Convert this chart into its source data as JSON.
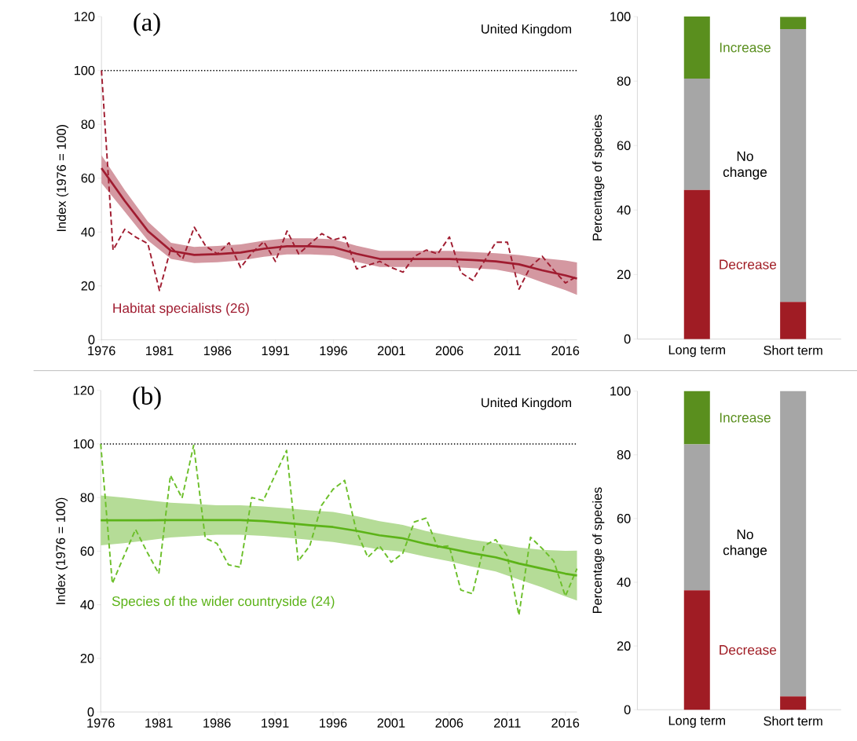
{
  "chart_data": [
    {
      "type": "line",
      "title": "(a)",
      "annotations": [
        "United Kingdom"
      ],
      "ylabel": "Index (1976 = 100)",
      "xlim": [
        1976,
        2017
      ],
      "xticks": [
        1976,
        1981,
        1986,
        1991,
        1996,
        2001,
        2006,
        2011,
        2016
      ],
      "ylim": [
        0,
        120
      ],
      "yticks": [
        0,
        20,
        40,
        60,
        80,
        100,
        120
      ],
      "ref_lines": [
        {
          "axis": "y",
          "value": 100,
          "color": "#000000",
          "line_style": "dotted"
        }
      ],
      "series": [
        {
          "color": "#a01c30",
          "line_style": "dashed",
          "x": [
            1976,
            1977,
            1978,
            1979,
            1980,
            1981,
            1982,
            1983,
            1984,
            1985,
            1986,
            1987,
            1988,
            1989,
            1990,
            1991,
            1992,
            1993,
            1994,
            1995,
            1996,
            1997,
            1998,
            1999,
            2000,
            2001,
            2002,
            2003,
            2004,
            2005,
            2006,
            2007,
            2008,
            2009,
            2010,
            2011,
            2012,
            2013,
            2014,
            2015,
            2016,
            2017
          ],
          "values": [
            100,
            33.3,
            41,
            38,
            35.7,
            18.3,
            34.3,
            30,
            41.8,
            34.7,
            31.9,
            36,
            26.8,
            32.4,
            36.4,
            29.1,
            40.4,
            31.9,
            35.7,
            39.4,
            37.1,
            38.2,
            26.3,
            27.7,
            29.1,
            26.8,
            25.1,
            31,
            33.3,
            31.9,
            38.2,
            24.9,
            22.1,
            29.1,
            36.2,
            36.2,
            18.8,
            27.2,
            31,
            25.8,
            21.1,
            23.5
          ]
        },
        {
          "name": "Habitat specialists (26)",
          "color": "#a01c30",
          "line_style": "solid",
          "x": [
            1976,
            1978,
            1980,
            1982,
            1984,
            1986,
            1988,
            1990,
            1992,
            1994,
            1996,
            1998,
            2000,
            2002,
            2004,
            2006,
            2008,
            2010,
            2012,
            2014,
            2016,
            2017
          ],
          "values": [
            63.7,
            51.6,
            40.4,
            33,
            31.5,
            31.8,
            32.4,
            33.8,
            34.7,
            34.7,
            34.3,
            31.9,
            30,
            30,
            30,
            30,
            29.6,
            29.1,
            28,
            25.8,
            23.9,
            22.7
          ],
          "lower": [
            58.2,
            47.6,
            36.9,
            30,
            28.5,
            28.8,
            29.4,
            30.8,
            31.7,
            31.7,
            31.3,
            28.9,
            27,
            27,
            27,
            27,
            26.6,
            26.1,
            24.5,
            21.3,
            18.4,
            16.7
          ],
          "upper": [
            68.5,
            55.6,
            43.9,
            36,
            34.5,
            34.8,
            35.4,
            36.8,
            37.7,
            37.7,
            37.3,
            34.9,
            33,
            33,
            33,
            33,
            32.6,
            32.1,
            31.5,
            30.3,
            29.4,
            28.7
          ]
        }
      ]
    },
    {
      "type": "bar",
      "stacked": true,
      "ylabel": "Percentage of species",
      "categories": [
        "Long term",
        "Short term"
      ],
      "ylim": [
        0,
        100
      ],
      "yticks": [
        0,
        20,
        40,
        60,
        80,
        100
      ],
      "series": [
        {
          "name": "Decrease",
          "color": "#a01c24",
          "values": [
            46.2,
            11.5
          ]
        },
        {
          "name": "No change",
          "color": "#a6a6a6",
          "values": [
            34.6,
            84.6
          ]
        },
        {
          "name": "Increase",
          "color": "#5a8f1e",
          "values": [
            19.2,
            3.8
          ]
        }
      ]
    },
    {
      "type": "line",
      "title": "(b)",
      "annotations": [
        "United Kingdom"
      ],
      "ylabel": "Index (1976 = 100)",
      "xlim": [
        1976,
        2017
      ],
      "xticks": [
        1976,
        1981,
        1986,
        1991,
        1996,
        2001,
        2006,
        2011,
        2016
      ],
      "ylim": [
        0,
        120
      ],
      "yticks": [
        0,
        20,
        40,
        60,
        80,
        100,
        120
      ],
      "ref_lines": [
        {
          "axis": "y",
          "value": 100,
          "color": "#000000",
          "line_style": "dotted"
        }
      ],
      "series": [
        {
          "color": "#6cbf2a",
          "line_style": "dashed",
          "x": [
            1976,
            1977,
            1978,
            1979,
            1980,
            1981,
            1982,
            1983,
            1984,
            1985,
            1986,
            1987,
            1988,
            1989,
            1990,
            1991,
            1992,
            1993,
            1994,
            1995,
            1996,
            1997,
            1998,
            1999,
            2000,
            2001,
            2002,
            2003,
            2004,
            2005,
            2006,
            2007,
            2008,
            2009,
            2010,
            2011,
            2012,
            2013,
            2014,
            2015,
            2016,
            2017
          ],
          "values": [
            100,
            47.9,
            58.2,
            68.1,
            59.6,
            51.6,
            88.3,
            79.8,
            99.5,
            64.8,
            62.9,
            54.9,
            54,
            80,
            78.9,
            88.3,
            97.6,
            56.3,
            62,
            77,
            83.1,
            86.4,
            67.6,
            57.7,
            62,
            55.9,
            59.2,
            70.9,
            72.3,
            61.5,
            62,
            45.5,
            44.1,
            62,
            64.3,
            58.2,
            36.1,
            65.2,
            61,
            56.3,
            43.2,
            53.5
          ]
        },
        {
          "name": "Species of the wider countryside (24)",
          "color": "#5cb318",
          "line_style": "solid",
          "x": [
            1976,
            1978,
            1980,
            1982,
            1984,
            1986,
            1988,
            1990,
            1992,
            1994,
            1996,
            1998,
            2000,
            2002,
            2004,
            2006,
            2008,
            2010,
            2012,
            2014,
            2016,
            2017
          ],
          "values": [
            71.5,
            71.5,
            71.5,
            71.6,
            71.6,
            71.6,
            71.6,
            71.2,
            70.5,
            69.7,
            69,
            67.6,
            65.9,
            64.8,
            62.7,
            61,
            59.2,
            57.7,
            55.4,
            53.5,
            51.6,
            50.9
          ],
          "lower": [
            62.2,
            63,
            64,
            65.1,
            65.6,
            66.1,
            66.1,
            65.7,
            65,
            64.2,
            63.4,
            62.1,
            60.6,
            59.8,
            57.9,
            56.2,
            54.2,
            52.4,
            49.4,
            46.5,
            43.1,
            41.6
          ],
          "upper": [
            80.8,
            80,
            79,
            78.1,
            77.6,
            77.1,
            77.1,
            76.7,
            76,
            75.2,
            74.6,
            73.1,
            71.2,
            69.8,
            67.5,
            65.8,
            64.2,
            63,
            61.4,
            60.5,
            60.1,
            60.2
          ]
        }
      ]
    },
    {
      "type": "bar",
      "stacked": true,
      "ylabel": "Percentage of species",
      "categories": [
        "Long term",
        "Short term"
      ],
      "ylim": [
        0,
        100
      ],
      "yticks": [
        0,
        20,
        40,
        60,
        80,
        100
      ],
      "series": [
        {
          "name": "Decrease",
          "color": "#a01c24",
          "values": [
            37.5,
            4.2
          ]
        },
        {
          "name": "No change",
          "color": "#a6a6a6",
          "values": [
            45.8,
            95.8
          ]
        },
        {
          "name": "Increase",
          "color": "#5a8f1e",
          "values": [
            16.7,
            0
          ]
        }
      ]
    }
  ]
}
